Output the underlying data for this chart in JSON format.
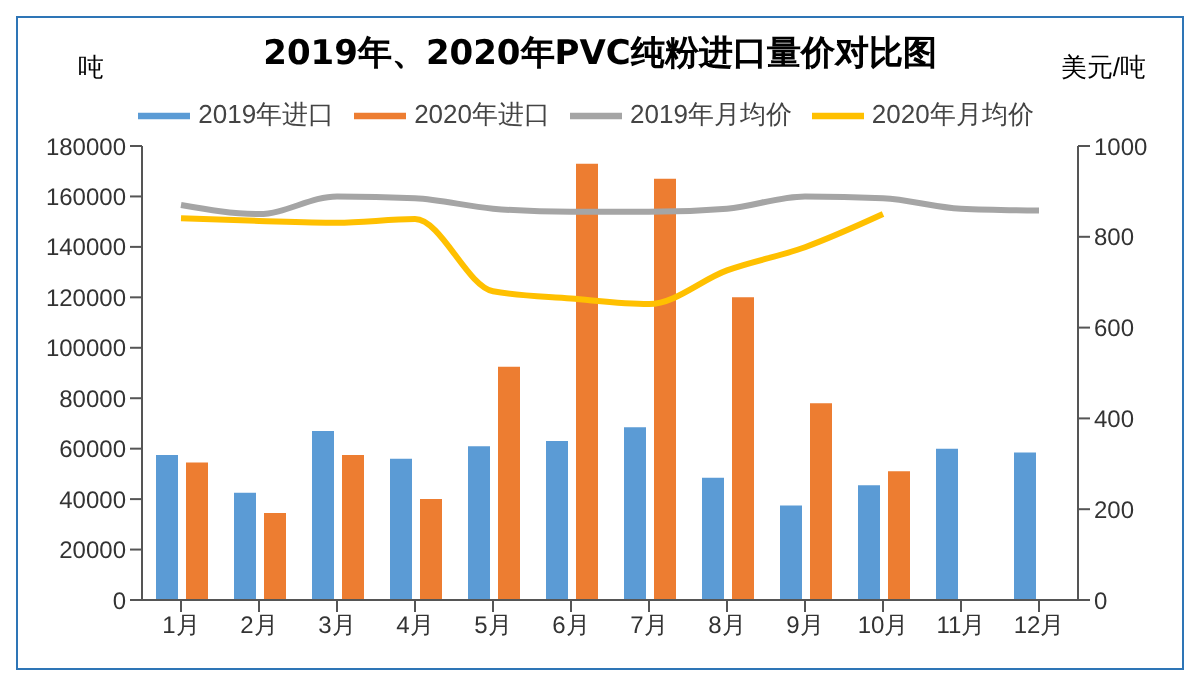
{
  "chart_data": {
    "type": "bar",
    "title": "2019年、2020年PVC纯粉进口量价对比图",
    "ylabel": "吨",
    "y2label": "美元/吨",
    "categories": [
      "1月",
      "2月",
      "3月",
      "4月",
      "5月",
      "6月",
      "7月",
      "8月",
      "9月",
      "10月",
      "11月",
      "12月"
    ],
    "series": [
      {
        "name": "2019年进口",
        "color": "#5b9bd5",
        "values": [
          57500,
          42500,
          67000,
          56000,
          61000,
          63000,
          68500,
          48500,
          37500,
          45500,
          60000,
          58500
        ]
      },
      {
        "name": "2020年进口",
        "color": "#ed7d31",
        "values": [
          54500,
          34500,
          57500,
          40000,
          92500,
          173000,
          167000,
          120000,
          78000,
          51000,
          null,
          null
        ]
      },
      {
        "name": "2019年月均价",
        "type": "line",
        "axis": "y2",
        "color": "#a5a5a5",
        "values": [
          870,
          850,
          889,
          885,
          862,
          855,
          855,
          862,
          889,
          885,
          862,
          858
        ]
      },
      {
        "name": "2020年月均价",
        "type": "line",
        "axis": "y2",
        "color": "#ffc000",
        "values": [
          841,
          835,
          831,
          839,
          680,
          664,
          652,
          726,
          777,
          850,
          null,
          null
        ]
      }
    ],
    "ylim": [
      0,
      180000
    ],
    "yticks": [
      0,
      20000,
      40000,
      60000,
      80000,
      100000,
      120000,
      140000,
      160000,
      180000
    ],
    "y2lim": [
      0,
      1000
    ],
    "y2ticks": [
      0,
      200,
      400,
      600,
      800,
      1000
    ],
    "grid": false,
    "legend": "top",
    "marker": "none",
    "line_style": "solid"
  }
}
